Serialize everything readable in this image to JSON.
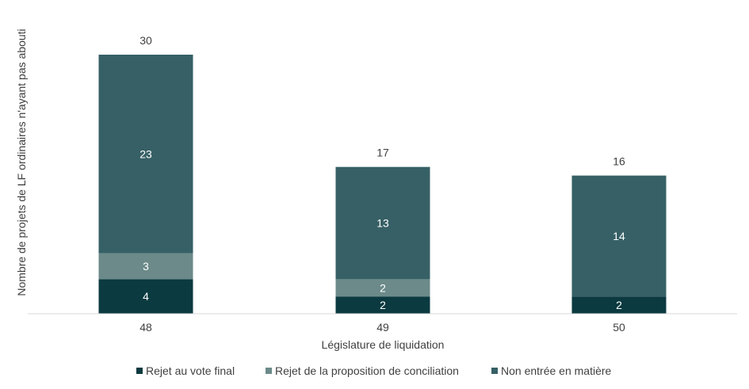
{
  "chart_data": {
    "type": "bar",
    "stacked": true,
    "categories": [
      "48",
      "49",
      "50"
    ],
    "series": [
      {
        "name": "Rejet au vote final",
        "values": [
          4,
          2,
          2
        ],
        "color": "#0b3a40"
      },
      {
        "name": "Rejet de la proposition de conciliation",
        "values": [
          3,
          2,
          0
        ],
        "color": "#6b8a89"
      },
      {
        "name": "Non entrée en matière",
        "values": [
          23,
          13,
          14
        ],
        "color": "#366066"
      }
    ],
    "totals": [
      30,
      17,
      16
    ],
    "title": "",
    "xlabel": "Législature de liquidation",
    "ylabel": "Nombre de projets de LF ordinaires n'ayant pas abouti",
    "ylim": [
      0,
      30
    ],
    "grid": false,
    "legend_position": "bottom"
  }
}
